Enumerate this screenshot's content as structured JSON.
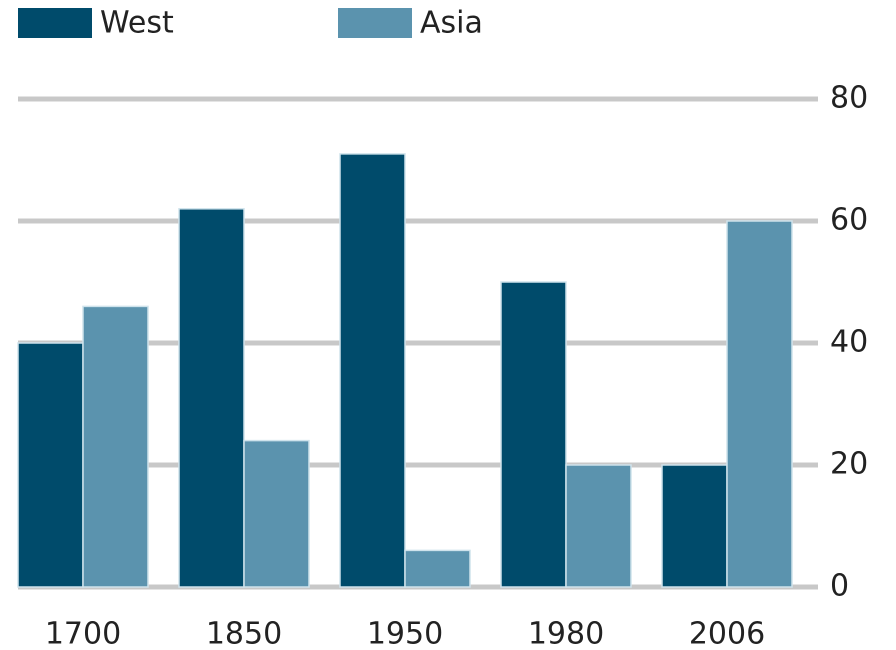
{
  "chart_data": {
    "type": "bar",
    "categories": [
      "1700",
      "1850",
      "1950",
      "1980",
      "2006"
    ],
    "series": [
      {
        "name": "West",
        "color": "#004b6b",
        "values": [
          40,
          62,
          71,
          50,
          20
        ]
      },
      {
        "name": "Asia",
        "color": "#5b93ae",
        "values": [
          46,
          24,
          6,
          20,
          60
        ]
      }
    ],
    "ylim": [
      0,
      80
    ],
    "yticks": [
      0,
      20,
      40,
      60,
      80
    ],
    "grid": true
  }
}
